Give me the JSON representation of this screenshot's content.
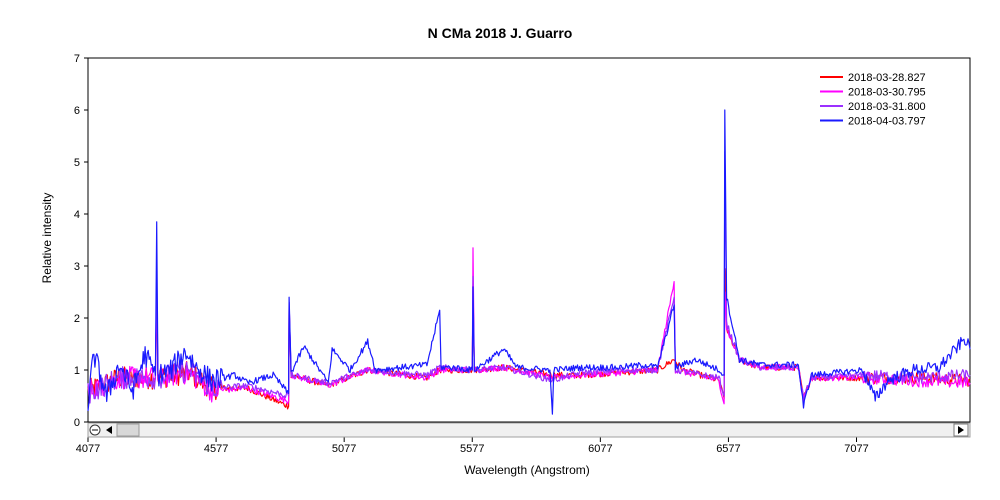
{
  "chart_data": {
    "type": "line",
    "title": "N CMa 2018   J. Guarro",
    "xlabel": "Wavelength (Angstrom)",
    "ylabel": "Relative intensity",
    "xlim": [
      4077,
      7520
    ],
    "ylim": [
      0,
      7
    ],
    "xticks": [
      4077,
      4577,
      5077,
      5577,
      6077,
      6577,
      7077
    ],
    "yticks": [
      0,
      1,
      2,
      3,
      4,
      5,
      6,
      7
    ],
    "grid": false,
    "legend_position": "top-right",
    "series": [
      {
        "name": "2018-03-28.827",
        "color": "#ff0000",
        "points": [
          [
            4077,
            0.6
          ],
          [
            4200,
            0.85
          ],
          [
            4340,
            0.85
          ],
          [
            4345,
            2.5
          ],
          [
            4350,
            0.85
          ],
          [
            4470,
            0.95
          ],
          [
            4560,
            0.65
          ],
          [
            4700,
            0.65
          ],
          [
            4860,
            0.3
          ],
          [
            4862,
            2.2
          ],
          [
            4870,
            0.9
          ],
          [
            5015,
            0.7
          ],
          [
            5169,
            1.0
          ],
          [
            5400,
            0.85
          ],
          [
            5450,
            1.0
          ],
          [
            5577,
            1.0
          ],
          [
            5580,
            2.6
          ],
          [
            5585,
            1.0
          ],
          [
            5700,
            1.05
          ],
          [
            5890,
            0.9
          ],
          [
            6000,
            0.9
          ],
          [
            6150,
            0.95
          ],
          [
            6300,
            1.0
          ],
          [
            6365,
            1.2
          ],
          [
            6400,
            1.0
          ],
          [
            6540,
            0.8
          ],
          [
            6560,
            0.45
          ],
          [
            6563,
            2.95
          ],
          [
            6570,
            1.8
          ],
          [
            6620,
            1.2
          ],
          [
            6700,
            1.05
          ],
          [
            6850,
            1.05
          ],
          [
            6870,
            0.45
          ],
          [
            6900,
            0.85
          ],
          [
            7100,
            0.85
          ],
          [
            7300,
            0.85
          ],
          [
            7520,
            0.8
          ]
        ]
      },
      {
        "name": "2018-03-30.795",
        "color": "#ff00ff",
        "points": [
          [
            4077,
            0.6
          ],
          [
            4200,
            0.85
          ],
          [
            4340,
            0.85
          ],
          [
            4345,
            2.6
          ],
          [
            4350,
            0.85
          ],
          [
            4470,
            0.95
          ],
          [
            4560,
            0.6
          ],
          [
            4700,
            0.65
          ],
          [
            4860,
            0.4
          ],
          [
            4862,
            2.3
          ],
          [
            4870,
            0.9
          ],
          [
            5015,
            0.7
          ],
          [
            5169,
            1.0
          ],
          [
            5400,
            0.85
          ],
          [
            5450,
            1.0
          ],
          [
            5577,
            1.0
          ],
          [
            5580,
            3.35
          ],
          [
            5585,
            1.0
          ],
          [
            5700,
            1.05
          ],
          [
            5890,
            0.85
          ],
          [
            6000,
            0.9
          ],
          [
            6150,
            0.95
          ],
          [
            6300,
            1.0
          ],
          [
            6365,
            2.7
          ],
          [
            6370,
            1.0
          ],
          [
            6540,
            0.8
          ],
          [
            6560,
            0.35
          ],
          [
            6563,
            2.5
          ],
          [
            6570,
            1.8
          ],
          [
            6620,
            1.2
          ],
          [
            6700,
            1.05
          ],
          [
            6850,
            1.05
          ],
          [
            6870,
            0.45
          ],
          [
            6900,
            0.85
          ],
          [
            7100,
            0.85
          ],
          [
            7300,
            0.8
          ],
          [
            7520,
            0.75
          ]
        ]
      },
      {
        "name": "2018-03-31.800",
        "color": "#9b30ff",
        "points": [
          [
            4077,
            0.55
          ],
          [
            4200,
            0.85
          ],
          [
            4340,
            0.85
          ],
          [
            4345,
            2.9
          ],
          [
            4350,
            0.85
          ],
          [
            4470,
            1.0
          ],
          [
            4560,
            0.65
          ],
          [
            4700,
            0.7
          ],
          [
            4860,
            0.5
          ],
          [
            4862,
            2.3
          ],
          [
            4870,
            0.9
          ],
          [
            5015,
            0.75
          ],
          [
            5169,
            1.0
          ],
          [
            5400,
            0.9
          ],
          [
            5450,
            1.05
          ],
          [
            5577,
            1.0
          ],
          [
            5580,
            2.8
          ],
          [
            5585,
            1.0
          ],
          [
            5700,
            1.05
          ],
          [
            5890,
            0.8
          ],
          [
            6000,
            0.95
          ],
          [
            6150,
            1.0
          ],
          [
            6300,
            1.0
          ],
          [
            6365,
            2.4
          ],
          [
            6370,
            1.0
          ],
          [
            6540,
            0.85
          ],
          [
            6560,
            0.5
          ],
          [
            6563,
            5.2
          ],
          [
            6570,
            1.9
          ],
          [
            6620,
            1.2
          ],
          [
            6700,
            1.05
          ],
          [
            6850,
            1.05
          ],
          [
            6870,
            0.45
          ],
          [
            6900,
            0.85
          ],
          [
            7100,
            0.9
          ],
          [
            7300,
            0.85
          ],
          [
            7520,
            0.9
          ]
        ]
      },
      {
        "name": "2018-04-03.797",
        "color": "#1a1aff",
        "points": [
          [
            4077,
            0.35
          ],
          [
            4100,
            1.3
          ],
          [
            4150,
            0.5
          ],
          [
            4200,
            1.1
          ],
          [
            4250,
            0.6
          ],
          [
            4300,
            1.3
          ],
          [
            4340,
            0.9
          ],
          [
            4345,
            3.85
          ],
          [
            4350,
            0.9
          ],
          [
            4400,
            1.0
          ],
          [
            4460,
            1.35
          ],
          [
            4500,
            1.05
          ],
          [
            4560,
            0.8
          ],
          [
            4650,
            0.9
          ],
          [
            4700,
            0.75
          ],
          [
            4800,
            0.9
          ],
          [
            4860,
            0.55
          ],
          [
            4862,
            2.4
          ],
          [
            4870,
            0.95
          ],
          [
            4920,
            1.45
          ],
          [
            5015,
            0.75
          ],
          [
            5030,
            1.4
          ],
          [
            5100,
            1.0
          ],
          [
            5169,
            1.55
          ],
          [
            5200,
            1.0
          ],
          [
            5300,
            1.05
          ],
          [
            5400,
            1.1
          ],
          [
            5450,
            2.15
          ],
          [
            5455,
            1.05
          ],
          [
            5500,
            1.05
          ],
          [
            5577,
            1.0
          ],
          [
            5580,
            2.6
          ],
          [
            5585,
            1.0
          ],
          [
            5700,
            1.4
          ],
          [
            5750,
            1.05
          ],
          [
            5880,
            1.0
          ],
          [
            5890,
            0.15
          ],
          [
            5895,
            1.0
          ],
          [
            6000,
            1.05
          ],
          [
            6150,
            1.05
          ],
          [
            6250,
            1.1
          ],
          [
            6300,
            1.05
          ],
          [
            6365,
            2.25
          ],
          [
            6370,
            1.05
          ],
          [
            6450,
            1.2
          ],
          [
            6540,
            1.0
          ],
          [
            6560,
            0.9
          ],
          [
            6563,
            6.0
          ],
          [
            6570,
            2.4
          ],
          [
            6620,
            1.2
          ],
          [
            6700,
            1.1
          ],
          [
            6850,
            1.1
          ],
          [
            6870,
            0.3
          ],
          [
            6900,
            0.9
          ],
          [
            7000,
            0.95
          ],
          [
            7100,
            1.0
          ],
          [
            7150,
            0.45
          ],
          [
            7200,
            0.8
          ],
          [
            7300,
            1.0
          ],
          [
            7400,
            1.05
          ],
          [
            7500,
            1.6
          ],
          [
            7520,
            1.4
          ]
        ]
      }
    ]
  }
}
